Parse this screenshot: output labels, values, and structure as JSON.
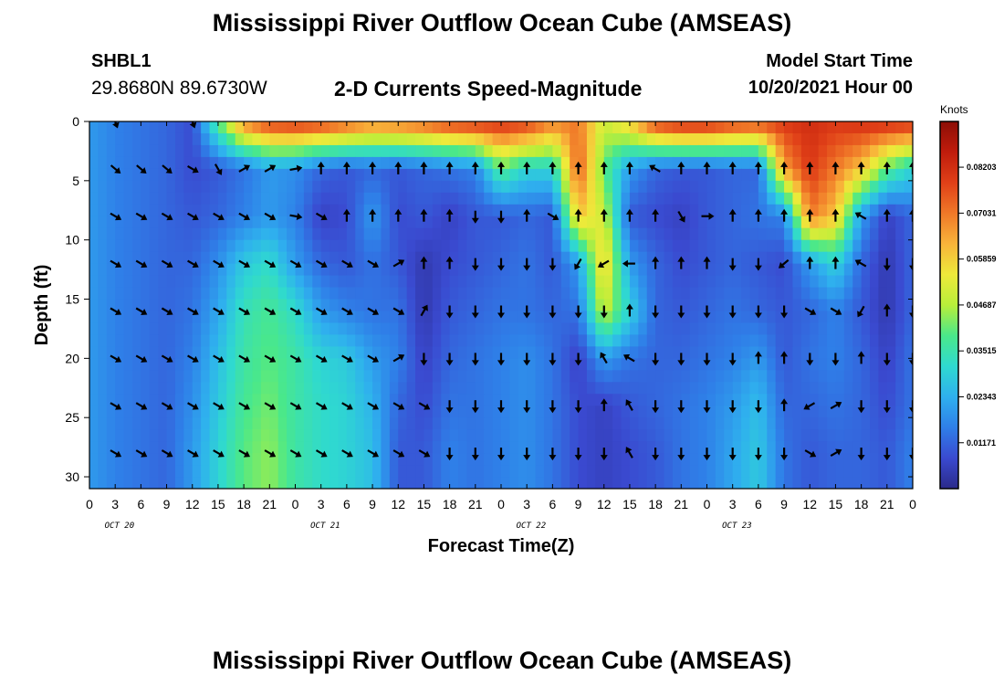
{
  "page": {
    "title": "Mississippi River Outflow Ocean Cube (AMSEAS)",
    "footer_title": "Mississippi River Outflow Ocean Cube (AMSEAS)",
    "station_id": "SHBL1",
    "station_coords": "29.8680N  89.6730W",
    "subtitle": "2-D Currents Speed-Magnitude",
    "model_start_label": "Model Start Time",
    "model_start_value": "10/20/2021 Hour 00"
  },
  "chart_data": {
    "type": "heatmap",
    "xlabel": "Forecast Time(Z)",
    "ylabel": "Depth (ft)",
    "x_tick_labels": [
      "0",
      "3",
      "6",
      "9",
      "12",
      "15",
      "18",
      "21",
      "0",
      "3",
      "6",
      "9",
      "12",
      "15",
      "18",
      "21",
      "0",
      "3",
      "6",
      "9",
      "12",
      "15",
      "18",
      "21",
      "0",
      "3",
      "6",
      "9",
      "12",
      "15",
      "18",
      "21",
      "0"
    ],
    "date_labels": [
      {
        "label": "OCT 20",
        "at_hour": 3.5
      },
      {
        "label": "OCT 21",
        "at_hour": 27.5
      },
      {
        "label": "OCT 22",
        "at_hour": 51.5
      },
      {
        "label": "OCT 23",
        "at_hour": 75.5
      }
    ],
    "xlim": [
      0,
      96
    ],
    "ylim": [
      0,
      31
    ],
    "y_ticks": [
      0,
      5,
      10,
      15,
      20,
      25,
      30
    ],
    "y_inverted": true,
    "colorbar": {
      "title": "Knots",
      "ticks": [
        0.01171,
        0.02343,
        0.03515,
        0.04687,
        0.05859,
        0.07031,
        0.08203
      ],
      "tick_labels": [
        "0.01171",
        "0.02343",
        "0.03515",
        "0.04687",
        "0.05859",
        "0.07031",
        "0.08203"
      ],
      "range": [
        0,
        0.0937
      ],
      "colormap": [
        "#2b2a8a",
        "#3a4ad0",
        "#2f7fe8",
        "#2fb0ee",
        "#2fd9d0",
        "#4ae88a",
        "#b8ee3a",
        "#eeea3a",
        "#f8b43a",
        "#f07828",
        "#e04018",
        "#c01c0c",
        "#8c0e06"
      ]
    },
    "depth_levels_ft": [
      0,
      4,
      8,
      12,
      16,
      20,
      24,
      28
    ],
    "time_samples_hours": [
      0,
      3,
      6,
      9,
      12,
      15,
      18,
      21,
      24,
      27,
      30,
      33,
      36,
      39,
      42,
      45,
      48,
      51,
      54,
      57,
      60,
      63,
      66,
      69,
      72,
      75,
      78,
      81,
      84,
      87,
      90,
      93,
      96
    ],
    "speed_knots": [
      [
        0.02,
        0.016,
        0.014,
        0.012,
        0.008,
        0.04,
        0.07,
        0.08,
        0.082,
        0.08,
        0.075,
        0.07,
        0.072,
        0.075,
        0.08,
        0.082,
        0.082,
        0.08,
        0.07,
        0.07,
        0.05,
        0.06,
        0.08,
        0.085,
        0.085,
        0.08,
        0.078,
        0.08,
        0.082,
        0.08,
        0.082,
        0.083,
        0.082
      ],
      [
        0.02,
        0.016,
        0.014,
        0.012,
        0.008,
        0.01,
        0.014,
        0.02,
        0.018,
        0.012,
        0.01,
        0.012,
        0.01,
        0.012,
        0.014,
        0.016,
        0.04,
        0.03,
        0.03,
        0.075,
        0.04,
        0.02,
        0.012,
        0.01,
        0.01,
        0.012,
        0.012,
        0.065,
        0.08,
        0.07,
        0.06,
        0.04,
        0.03
      ],
      [
        0.02,
        0.016,
        0.014,
        0.012,
        0.01,
        0.012,
        0.016,
        0.02,
        0.016,
        0.006,
        0.008,
        0.02,
        0.008,
        0.01,
        0.006,
        0.01,
        0.01,
        0.012,
        0.01,
        0.06,
        0.05,
        0.01,
        0.008,
        0.006,
        0.01,
        0.012,
        0.014,
        0.016,
        0.07,
        0.06,
        0.02,
        0.006,
        0.012
      ],
      [
        0.02,
        0.016,
        0.014,
        0.012,
        0.012,
        0.018,
        0.028,
        0.032,
        0.02,
        0.012,
        0.01,
        0.014,
        0.01,
        0.004,
        0.008,
        0.01,
        0.012,
        0.014,
        0.01,
        0.02,
        0.06,
        0.02,
        0.012,
        0.008,
        0.01,
        0.012,
        0.01,
        0.008,
        0.02,
        0.03,
        0.012,
        0.004,
        0.012
      ],
      [
        0.02,
        0.016,
        0.014,
        0.012,
        0.014,
        0.022,
        0.034,
        0.038,
        0.032,
        0.02,
        0.016,
        0.014,
        0.014,
        0.004,
        0.01,
        0.012,
        0.014,
        0.014,
        0.012,
        0.014,
        0.05,
        0.03,
        0.012,
        0.01,
        0.012,
        0.014,
        0.012,
        0.01,
        0.012,
        0.016,
        0.01,
        0.004,
        0.012
      ],
      [
        0.02,
        0.016,
        0.014,
        0.012,
        0.016,
        0.026,
        0.036,
        0.04,
        0.036,
        0.03,
        0.028,
        0.02,
        0.016,
        0.006,
        0.012,
        0.014,
        0.016,
        0.018,
        0.014,
        0.006,
        0.02,
        0.014,
        0.012,
        0.012,
        0.014,
        0.016,
        0.02,
        0.01,
        0.014,
        0.016,
        0.012,
        0.006,
        0.014
      ],
      [
        0.02,
        0.016,
        0.014,
        0.012,
        0.018,
        0.028,
        0.038,
        0.042,
        0.036,
        0.032,
        0.03,
        0.024,
        0.012,
        0.008,
        0.014,
        0.014,
        0.016,
        0.018,
        0.014,
        0.008,
        0.006,
        0.01,
        0.012,
        0.014,
        0.016,
        0.02,
        0.026,
        0.012,
        0.012,
        0.014,
        0.012,
        0.008,
        0.014
      ],
      [
        0.02,
        0.016,
        0.014,
        0.012,
        0.02,
        0.03,
        0.04,
        0.044,
        0.036,
        0.032,
        0.03,
        0.026,
        0.01,
        0.01,
        0.016,
        0.014,
        0.016,
        0.018,
        0.014,
        0.008,
        0.006,
        0.008,
        0.01,
        0.014,
        0.016,
        0.022,
        0.028,
        0.014,
        0.01,
        0.012,
        0.012,
        0.01,
        0.016
      ]
    ],
    "direction_deg": [
      [
        null,
        160,
        null,
        null,
        160,
        null,
        null,
        null,
        null,
        null,
        null,
        null,
        null,
        null,
        null,
        null,
        null,
        null,
        null,
        null,
        null,
        null,
        null,
        null,
        null,
        null,
        null,
        null,
        null,
        null,
        null,
        null,
        null
      ],
      [
        null,
        130,
        130,
        130,
        120,
        150,
        60,
        60,
        80,
        0,
        0,
        0,
        0,
        0,
        0,
        0,
        0,
        0,
        0,
        0,
        0,
        0,
        300,
        0,
        0,
        0,
        0,
        0,
        0,
        0,
        0,
        0,
        0
      ],
      [
        null,
        120,
        120,
        120,
        120,
        120,
        120,
        120,
        100,
        120,
        0,
        0,
        0,
        0,
        0,
        180,
        180,
        0,
        120,
        0,
        0,
        0,
        0,
        150,
        90,
        0,
        0,
        0,
        0,
        0,
        300,
        0,
        0
      ],
      [
        null,
        120,
        120,
        120,
        120,
        120,
        120,
        120,
        120,
        120,
        120,
        120,
        60,
        0,
        0,
        180,
        180,
        180,
        180,
        210,
        240,
        270,
        0,
        0,
        0,
        180,
        180,
        230,
        0,
        0,
        300,
        180,
        180
      ],
      [
        null,
        120,
        120,
        120,
        120,
        120,
        120,
        120,
        120,
        120,
        120,
        120,
        120,
        30,
        180,
        180,
        180,
        180,
        180,
        180,
        180,
        0,
        180,
        180,
        180,
        180,
        180,
        180,
        120,
        120,
        210,
        0,
        180
      ],
      [
        null,
        120,
        120,
        120,
        120,
        120,
        120,
        120,
        120,
        120,
        120,
        120,
        60,
        180,
        180,
        180,
        180,
        180,
        180,
        180,
        330,
        300,
        180,
        180,
        180,
        180,
        0,
        0,
        180,
        180,
        0,
        180,
        180
      ],
      [
        null,
        120,
        120,
        120,
        120,
        120,
        120,
        120,
        120,
        120,
        120,
        120,
        120,
        120,
        180,
        180,
        180,
        180,
        180,
        180,
        0,
        330,
        180,
        180,
        180,
        180,
        180,
        0,
        240,
        60,
        180,
        180,
        180
      ],
      [
        null,
        120,
        120,
        120,
        120,
        120,
        120,
        120,
        120,
        120,
        120,
        120,
        120,
        120,
        180,
        180,
        180,
        180,
        180,
        180,
        180,
        330,
        180,
        180,
        180,
        180,
        180,
        180,
        120,
        60,
        180,
        180,
        180
      ]
    ]
  }
}
